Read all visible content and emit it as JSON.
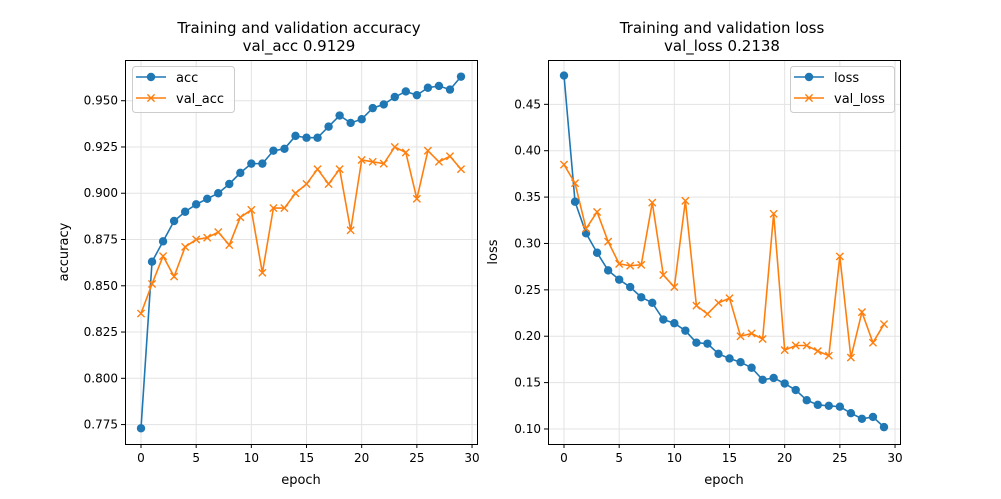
{
  "chart_data": [
    {
      "type": "line",
      "title": "Training and validation accuracy",
      "subtitle": "val_acc 0.9129",
      "xlabel": "epoch",
      "ylabel": "accuracy",
      "xlim": [
        -1.45,
        30.45
      ],
      "ylim": [
        0.7645,
        0.972
      ],
      "xticks": [
        0,
        5,
        10,
        15,
        20,
        25,
        30
      ],
      "yticks": [
        0.775,
        0.8,
        0.825,
        0.85,
        0.875,
        0.9,
        0.925,
        0.95
      ],
      "ytick_labels": [
        "0.775",
        "0.800",
        "0.825",
        "0.850",
        "0.875",
        "0.900",
        "0.925",
        "0.950"
      ],
      "grid": true,
      "legend_position": "top-left",
      "x": [
        0,
        1,
        2,
        3,
        4,
        5,
        6,
        7,
        8,
        9,
        10,
        11,
        12,
        13,
        14,
        15,
        16,
        17,
        18,
        19,
        20,
        21,
        22,
        23,
        24,
        25,
        26,
        27,
        28,
        29
      ],
      "series": [
        {
          "name": "acc",
          "color": "#1f77b4",
          "marker": "circle",
          "values": [
            0.773,
            0.863,
            0.874,
            0.885,
            0.89,
            0.894,
            0.897,
            0.9,
            0.905,
            0.911,
            0.916,
            0.916,
            0.923,
            0.924,
            0.931,
            0.93,
            0.93,
            0.936,
            0.942,
            0.938,
            0.94,
            0.946,
            0.948,
            0.952,
            0.955,
            0.953,
            0.957,
            0.958,
            0.956,
            0.963
          ]
        },
        {
          "name": "val_acc",
          "color": "#ff7f0e",
          "marker": "x",
          "values": [
            0.835,
            0.851,
            0.866,
            0.855,
            0.871,
            0.875,
            0.876,
            0.879,
            0.872,
            0.887,
            0.891,
            0.857,
            0.892,
            0.892,
            0.9,
            0.905,
            0.913,
            0.905,
            0.913,
            0.88,
            0.918,
            0.917,
            0.916,
            0.925,
            0.922,
            0.897,
            0.923,
            0.917,
            0.92,
            0.913
          ]
        }
      ]
    },
    {
      "type": "line",
      "title": "Training and validation loss",
      "subtitle": "val_loss 0.2138",
      "xlabel": "epoch",
      "ylabel": "loss",
      "xlim": [
        -1.45,
        30.45
      ],
      "ylim": [
        0.0838,
        0.4978
      ],
      "xticks": [
        0,
        5,
        10,
        15,
        20,
        25,
        30
      ],
      "yticks": [
        0.1,
        0.15,
        0.2,
        0.25,
        0.3,
        0.35,
        0.4,
        0.45
      ],
      "ytick_labels": [
        "0.10",
        "0.15",
        "0.20",
        "0.25",
        "0.30",
        "0.35",
        "0.40",
        "0.45"
      ],
      "grid": true,
      "legend_position": "top-right",
      "x": [
        0,
        1,
        2,
        3,
        4,
        5,
        6,
        7,
        8,
        9,
        10,
        11,
        12,
        13,
        14,
        15,
        16,
        17,
        18,
        19,
        20,
        21,
        22,
        23,
        24,
        25,
        26,
        27,
        28,
        29
      ],
      "series": [
        {
          "name": "loss",
          "color": "#1f77b4",
          "marker": "circle",
          "values": [
            0.481,
            0.345,
            0.311,
            0.29,
            0.271,
            0.261,
            0.253,
            0.242,
            0.236,
            0.218,
            0.214,
            0.206,
            0.193,
            0.192,
            0.181,
            0.176,
            0.172,
            0.166,
            0.153,
            0.155,
            0.149,
            0.142,
            0.131,
            0.126,
            0.125,
            0.124,
            0.117,
            0.111,
            0.113,
            0.102
          ]
        },
        {
          "name": "val_loss",
          "color": "#ff7f0e",
          "marker": "x",
          "values": [
            0.385,
            0.365,
            0.316,
            0.334,
            0.302,
            0.278,
            0.276,
            0.277,
            0.344,
            0.266,
            0.253,
            0.346,
            0.233,
            0.224,
            0.236,
            0.241,
            0.2,
            0.203,
            0.197,
            0.332,
            0.185,
            0.19,
            0.19,
            0.184,
            0.179,
            0.286,
            0.177,
            0.226,
            0.193,
            0.213
          ]
        }
      ]
    }
  ]
}
